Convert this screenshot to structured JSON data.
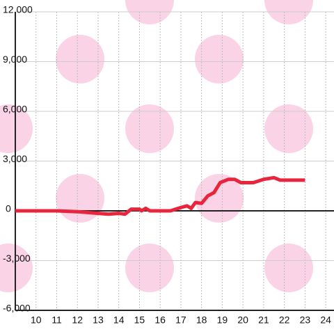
{
  "chart_data": {
    "type": "line",
    "xlim": [
      9,
      24.4
    ],
    "ylim": [
      -6000,
      12000
    ],
    "xticks": [
      10,
      11,
      12,
      13,
      14,
      15,
      16,
      17,
      18,
      19,
      20,
      21,
      22,
      23,
      24
    ],
    "yticks": [
      {
        "value": -6000,
        "label": "-6,000"
      },
      {
        "value": -3000,
        "label": "-3,000"
      },
      0,
      {
        "value": 3000,
        "label": "3,000"
      },
      {
        "value": 6000,
        "label": "6,000"
      },
      {
        "value": 9000,
        "label": "9,000"
      },
      {
        "value": 12000,
        "label": "12,000"
      }
    ],
    "grid": true,
    "series": [
      {
        "color": "#e8253c",
        "x": [
          9.0,
          11.0,
          12.0,
          12.5,
          13.0,
          13.5,
          14.0,
          14.3,
          14.6,
          15.0,
          15.1,
          15.3,
          15.5,
          16.0,
          16.5,
          17.0,
          17.3,
          17.5,
          17.7,
          18.0,
          18.3,
          18.6,
          18.9,
          19.3,
          19.6,
          19.9,
          20.5,
          21.0,
          21.5,
          21.8,
          22.0,
          23.0
        ],
        "values": [
          0,
          0,
          -50,
          -100,
          -150,
          -200,
          -150,
          -200,
          100,
          100,
          0,
          150,
          0,
          0,
          0,
          200,
          300,
          150,
          500,
          450,
          900,
          1100,
          1700,
          1900,
          1900,
          1700,
          1700,
          1900,
          2000,
          1850,
          1850,
          1850
        ]
      }
    ]
  }
}
